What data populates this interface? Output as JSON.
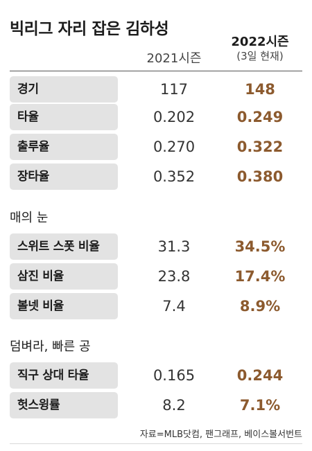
{
  "title": "빅리그 자리 잡은 김하성",
  "columns": {
    "col2021": "2021시즌",
    "col2022_main": "2022시즌",
    "col2022_sub": "(3일 현재)"
  },
  "sections": [
    {
      "title": ""
    },
    {
      "title": "매의 눈"
    },
    {
      "title": "덤벼라, 빠른 공"
    }
  ],
  "source": "자료=MLB닷컴, 팬그래프, 베이스볼서번트",
  "colors": {
    "highlight": "#8c5a2e",
    "label_bg": "#e3e3e3"
  },
  "chart_data": {
    "type": "table",
    "title": "빅리그 자리 잡은 김하성",
    "columns": [
      "2021시즌",
      "2022시즌 (3일 현재)"
    ],
    "rows": [
      {
        "section": "",
        "stat": "경기",
        "v2021": "117",
        "v2022": "148"
      },
      {
        "section": "",
        "stat": "타율",
        "v2021": "0.202",
        "v2022": "0.249"
      },
      {
        "section": "",
        "stat": "출루율",
        "v2021": "0.270",
        "v2022": "0.322"
      },
      {
        "section": "",
        "stat": "장타율",
        "v2021": "0.352",
        "v2022": "0.380"
      },
      {
        "section": "매의 눈",
        "stat": "스위트 스폿 비율",
        "v2021": "31.3",
        "v2022": "34.5%"
      },
      {
        "section": "매의 눈",
        "stat": "삼진 비율",
        "v2021": "23.8",
        "v2022": "17.4%"
      },
      {
        "section": "매의 눈",
        "stat": "볼넷 비율",
        "v2021": "7.4",
        "v2022": "8.9%"
      },
      {
        "section": "덤벼라, 빠른 공",
        "stat": "직구 상대 타율",
        "v2021": "0.165",
        "v2022": "0.244"
      },
      {
        "section": "덤벼라, 빠른 공",
        "stat": "헛스윙률",
        "v2021": "8.2",
        "v2022": "7.1%"
      }
    ]
  }
}
